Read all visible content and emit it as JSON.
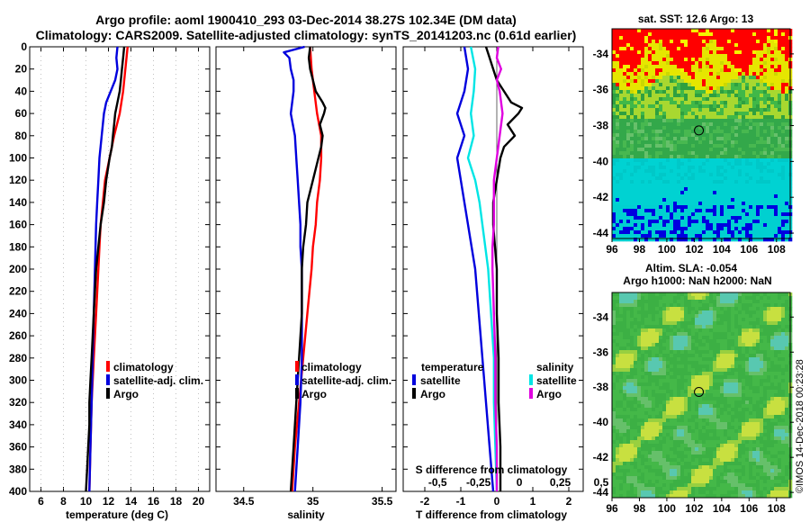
{
  "header": {
    "title_line1": "Argo profile: aoml 1900410_293 03-Dec-2014 38.27S 102.34E (DM data)",
    "title_line2": "Climatology: CARS2009. Satellite-adjusted climatology: synTS_20141203.nc (0.61d earlier)"
  },
  "colors": {
    "climatology": "#ff0000",
    "satellite": "#0000dd",
    "argo": "#000000",
    "sat_salinity": "#00e5e5",
    "argo_salinity": "#e000e0"
  },
  "chart_data": [
    {
      "type": "line",
      "id": "temperature",
      "xlabel": "temperature (deg C)",
      "ylabel": "",
      "xlim": [
        5,
        21
      ],
      "ylim": [
        400,
        0
      ],
      "x_ticks": [
        "6",
        "8",
        "10",
        "12",
        "14",
        "16",
        "18",
        "20"
      ],
      "y_ticks": [
        "0",
        "20",
        "40",
        "60",
        "80",
        "100",
        "120",
        "140",
        "160",
        "180",
        "200",
        "220",
        "240",
        "260",
        "280",
        "300",
        "320",
        "340",
        "360",
        "380",
        "400"
      ],
      "legend": [
        "climatology",
        "satellite-adj. clim.",
        "Argo"
      ],
      "series": [
        {
          "name": "climatology",
          "depth": [
            0,
            20,
            40,
            60,
            80,
            100,
            120,
            140,
            160,
            180,
            200,
            240,
            280,
            320,
            360,
            400
          ],
          "values": [
            13.7,
            13.5,
            13.3,
            13.0,
            12.5,
            12.1,
            11.7,
            11.5,
            11.3,
            11.2,
            11.1,
            10.9,
            10.7,
            10.5,
            10.4,
            10.3
          ]
        },
        {
          "name": "satellite-adj. clim.",
          "depth": [
            0,
            10,
            20,
            30,
            40,
            50,
            60,
            80,
            100,
            120,
            140,
            160,
            200,
            240,
            280,
            320,
            360,
            400
          ],
          "values": [
            12.8,
            12.7,
            12.8,
            12.6,
            12.2,
            11.8,
            11.6,
            11.4,
            11.2,
            11.1,
            11.0,
            10.9,
            10.8,
            10.7,
            10.6,
            10.5,
            10.4,
            10.3
          ]
        },
        {
          "name": "Argo",
          "depth": [
            0,
            10,
            20,
            30,
            40,
            50,
            60,
            70,
            80,
            90,
            100,
            120,
            140,
            160,
            180,
            200,
            220,
            240,
            260,
            280,
            300,
            320,
            340,
            360,
            380,
            400
          ],
          "values": [
            13.4,
            13.3,
            13.2,
            13.1,
            13.0,
            12.8,
            12.6,
            12.5,
            12.4,
            12.3,
            12.1,
            11.8,
            11.6,
            11.3,
            11.1,
            10.9,
            10.8,
            10.7,
            10.6,
            10.5,
            10.4,
            10.3,
            10.3,
            10.2,
            10.1,
            10.0
          ]
        }
      ]
    },
    {
      "type": "line",
      "id": "salinity",
      "xlabel": "salinity",
      "xlim": [
        34.3,
        35.6
      ],
      "ylim": [
        400,
        0
      ],
      "x_ticks": [
        "34.5",
        "35",
        "35.5"
      ],
      "legend": [
        "climatology",
        "satellite-adj. clim.",
        "Argo"
      ],
      "series": [
        {
          "name": "climatology",
          "depth": [
            0,
            20,
            40,
            60,
            80,
            100,
            120,
            140,
            160,
            180,
            200,
            240,
            280,
            320,
            360,
            400
          ],
          "values": [
            34.98,
            34.99,
            35.01,
            35.03,
            35.06,
            35.06,
            35.05,
            35.03,
            35.02,
            35.0,
            34.99,
            34.96,
            34.93,
            34.9,
            34.87,
            34.85
          ]
        },
        {
          "name": "satellite-adj. clim.",
          "depth": [
            0,
            5,
            10,
            20,
            30,
            40,
            60,
            80,
            100,
            120,
            140,
            160,
            180,
            200,
            240,
            280,
            320,
            360,
            400
          ],
          "values": [
            34.94,
            34.79,
            34.83,
            34.84,
            34.86,
            34.86,
            34.84,
            34.87,
            34.88,
            34.89,
            34.9,
            34.91,
            34.91,
            34.92,
            34.92,
            34.92,
            34.91,
            34.89,
            34.87
          ]
        },
        {
          "name": "Argo",
          "depth": [
            0,
            10,
            20,
            30,
            40,
            50,
            55,
            60,
            70,
            80,
            90,
            100,
            120,
            140,
            160,
            180,
            200,
            240,
            280,
            320,
            360,
            400
          ],
          "values": [
            34.98,
            34.97,
            34.98,
            35.0,
            35.02,
            35.07,
            35.09,
            35.08,
            35.05,
            35.07,
            35.06,
            35.04,
            35.0,
            34.96,
            34.95,
            34.93,
            34.92,
            34.92,
            34.9,
            34.88,
            34.86,
            34.84
          ]
        }
      ]
    },
    {
      "type": "line",
      "id": "differences",
      "xlabel": "T difference from climatology",
      "xlabel_top": "S difference from climatology",
      "xlim": [
        -2.6,
        2.4
      ],
      "ylim": [
        400,
        0
      ],
      "x_ticks": [
        "-2",
        "-1",
        "0",
        "1",
        "2"
      ],
      "x_ticks_top": [
        "-0.5",
        "-0.25",
        "0",
        "0.25",
        "0.5"
      ],
      "legend_title_left": "temperature",
      "legend_title_right": "salinity",
      "legend": [
        "satellite",
        "Argo",
        "satellite",
        "Argo"
      ],
      "series": [
        {
          "name": "satellite",
          "quantity": "temperature",
          "depth": [
            0,
            20,
            40,
            60,
            80,
            100,
            120,
            140,
            160,
            180,
            200,
            240,
            280,
            320,
            360,
            400
          ],
          "values": [
            -0.9,
            -0.8,
            -0.9,
            -1.1,
            -0.9,
            -1.1,
            -1.0,
            -0.9,
            -0.8,
            -0.7,
            -0.6,
            -0.5,
            -0.4,
            -0.3,
            -0.2,
            -0.1
          ]
        },
        {
          "name": "Argo",
          "quantity": "temperature",
          "depth": [
            0,
            10,
            20,
            30,
            40,
            50,
            55,
            60,
            70,
            80,
            90,
            100,
            120,
            140,
            160,
            180,
            200,
            240,
            280,
            320,
            360,
            400
          ],
          "values": [
            -0.3,
            -0.2,
            -0.1,
            0.0,
            0.2,
            0.4,
            0.7,
            0.6,
            0.3,
            0.5,
            0.2,
            0.1,
            0.0,
            -0.1,
            -0.1,
            -0.05,
            0.0,
            0.0,
            0.05,
            0.05,
            0.1,
            0.1
          ]
        },
        {
          "name": "satellite",
          "quantity": "salinity",
          "depth": [
            0,
            20,
            40,
            60,
            80,
            100,
            120,
            140,
            160,
            180,
            200,
            240,
            280,
            320,
            360,
            400
          ],
          "values": [
            -0.18,
            -0.15,
            -0.16,
            -0.18,
            -0.16,
            -0.2,
            -0.15,
            -0.12,
            -0.1,
            -0.08,
            -0.06,
            -0.04,
            -0.02,
            -0.02,
            -0.01,
            0.0
          ]
        },
        {
          "name": "Argo",
          "quantity": "salinity",
          "depth": [
            0,
            10,
            20,
            30,
            40,
            60,
            80,
            100,
            120,
            140,
            160,
            180,
            200,
            240,
            280,
            320,
            360,
            400
          ],
          "values": [
            0.01,
            0.0,
            0.03,
            0.0,
            0.02,
            0.04,
            0.02,
            0.0,
            -0.02,
            -0.02,
            -0.02,
            -0.03,
            -0.03,
            -0.02,
            -0.01,
            -0.01,
            0.0,
            0.0
          ]
        }
      ]
    },
    {
      "type": "heatmap",
      "id": "sst_map",
      "title": "sat. SST: 12.6 Argo: 13",
      "xlim": [
        96,
        109
      ],
      "ylim": [
        -44.3,
        -32.6
      ],
      "x_ticks": [
        "96",
        "98",
        "100",
        "102",
        "104",
        "106",
        "108"
      ],
      "y_ticks": [
        "-34",
        "-36",
        "-38",
        "-40",
        "-42",
        "-44"
      ],
      "float_position": {
        "lon": 102.34,
        "lat": -38.27
      }
    },
    {
      "type": "heatmap",
      "id": "sla_map",
      "title_line1": "Altim. SLA: -0.054",
      "title_line2": "Argo h1000: NaN h2000: NaN",
      "xlim": [
        96,
        109
      ],
      "ylim": [
        -44.3,
        -32.6
      ],
      "x_ticks": [
        "96",
        "98",
        "100",
        "102",
        "104",
        "106",
        "108"
      ],
      "y_ticks": [
        "-34",
        "-36",
        "-38",
        "-40",
        "-42",
        "-44"
      ],
      "float_position": {
        "lon": 102.34,
        "lat": -38.27
      }
    }
  ],
  "footer": {
    "credit": "©IMOS 14-Dec-2018 00:23:28"
  }
}
